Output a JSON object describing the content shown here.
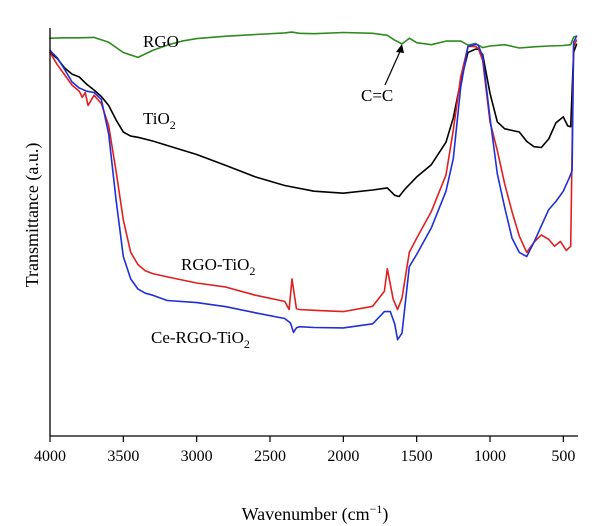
{
  "chart_data": {
    "type": "line",
    "title": "",
    "xlabel": "Wavenumber (cm",
    "xlabel_sup": "−1",
    "xlabel_end": ")",
    "ylabel": "Transmittance (a.u.)",
    "x_reversed": true,
    "xlim": [
      4000,
      400
    ],
    "ylim": [
      0,
      100
    ],
    "yticks_shown": false,
    "grid": false,
    "legend": "none",
    "x_ticks": [
      4000,
      3500,
      3000,
      2500,
      2000,
      1500,
      1000,
      500
    ],
    "x_tick_labels": [
      "4000",
      "3500",
      "3000",
      "2500",
      "2000",
      "1500",
      "1000",
      "500"
    ],
    "series": [
      {
        "name": "RGO",
        "color": "#2e8b1e",
        "x": [
          4000,
          3900,
          3800,
          3700,
          3600,
          3500,
          3400,
          3300,
          3200,
          3100,
          3000,
          2800,
          2600,
          2400,
          2350,
          2300,
          2200,
          2000,
          1800,
          1700,
          1650,
          1600,
          1550,
          1500,
          1400,
          1300,
          1200,
          1150,
          1100,
          1050,
          1000,
          900,
          800,
          700,
          600,
          500,
          450,
          430,
          410
        ],
        "y": [
          97.5,
          97.6,
          97.6,
          97.7,
          96.5,
          94,
          92.8,
          94.5,
          95.8,
          96.8,
          97.4,
          98.0,
          98.4,
          98.8,
          99.0,
          98.7,
          98.6,
          98.9,
          98.7,
          98.2,
          97.0,
          96.1,
          97.5,
          96.4,
          95.9,
          96.8,
          96.8,
          95.8,
          96.2,
          95.2,
          95.6,
          95.9,
          95.1,
          95.4,
          95.6,
          95.7,
          95.9,
          97.8,
          98.0
        ],
        "label": "RGO"
      },
      {
        "name": "TiO2",
        "color": "#000000",
        "x": [
          4000,
          3950,
          3900,
          3850,
          3800,
          3750,
          3700,
          3650,
          3600,
          3550,
          3500,
          3450,
          3400,
          3300,
          3200,
          3000,
          2800,
          2600,
          2400,
          2200,
          2000,
          1800,
          1700,
          1650,
          1620,
          1580,
          1500,
          1400,
          1300,
          1250,
          1200,
          1150,
          1100,
          1080,
          1050,
          1000,
          950,
          900,
          800,
          750,
          700,
          650,
          600,
          550,
          500,
          470,
          450,
          430,
          410
        ],
        "y": [
          94,
          92.5,
          90.2,
          88.7,
          88,
          86.2,
          84.8,
          83.2,
          81,
          77.5,
          74.5,
          73.5,
          73.2,
          72.3,
          71.2,
          69,
          66.3,
          63.5,
          61.4,
          60,
          59.5,
          60.3,
          60.8,
          59,
          58.7,
          60.5,
          63.5,
          66.5,
          72,
          78,
          87,
          94,
          94.8,
          94.8,
          93.5,
          84,
          77,
          75.3,
          74.5,
          72.2,
          70.9,
          70.7,
          72.8,
          76.8,
          78.2,
          76,
          75.8,
          94,
          96
        ],
        "label": "TiO2"
      },
      {
        "name": "RGO-TiO2",
        "color": "#e02020",
        "x": [
          4000,
          3950,
          3900,
          3850,
          3800,
          3780,
          3760,
          3740,
          3700,
          3650,
          3600,
          3550,
          3500,
          3450,
          3400,
          3350,
          3300,
          3200,
          3000,
          2800,
          2600,
          2400,
          2370,
          2350,
          2320,
          2300,
          2200,
          2000,
          1800,
          1720,
          1700,
          1660,
          1630,
          1600,
          1550,
          1500,
          1400,
          1300,
          1250,
          1200,
          1150,
          1100,
          1080,
          1050,
          1000,
          950,
          900,
          850,
          800,
          750,
          700,
          650,
          600,
          560,
          520,
          480,
          450,
          430,
          410
        ],
        "y": [
          94,
          91,
          88.5,
          86,
          84.5,
          83,
          84.2,
          81,
          83.5,
          81.5,
          76,
          65,
          53,
          45,
          42,
          40.5,
          39.8,
          39,
          37.5,
          36.5,
          34.5,
          33,
          31,
          38.5,
          31.2,
          31,
          30.8,
          30.5,
          31.8,
          35.5,
          41,
          33.5,
          31,
          33.8,
          45,
          48.5,
          55,
          64,
          75,
          88,
          95.5,
          95.5,
          95,
          92,
          77,
          70,
          61.8,
          55,
          49,
          45,
          47.5,
          49.3,
          48.2,
          46.5,
          47.7,
          45.5,
          46.5,
          95.5,
          97
        ],
        "label": "RGO-TiO2"
      },
      {
        "name": "Ce-RGO-TiO2",
        "color": "#1f2fd8",
        "x": [
          4000,
          3950,
          3900,
          3850,
          3800,
          3750,
          3700,
          3650,
          3600,
          3550,
          3500,
          3450,
          3400,
          3350,
          3300,
          3200,
          3000,
          2800,
          2600,
          2400,
          2360,
          2340,
          2320,
          2300,
          2200,
          2000,
          1800,
          1720,
          1680,
          1650,
          1630,
          1600,
          1550,
          1500,
          1400,
          1300,
          1250,
          1200,
          1150,
          1100,
          1080,
          1050,
          1000,
          950,
          900,
          850,
          800,
          750,
          700,
          650,
          600,
          550,
          500,
          460,
          440,
          430,
          410
        ],
        "y": [
          94.5,
          92.7,
          89.8,
          86.8,
          85.3,
          84.5,
          84.2,
          82.5,
          74,
          58,
          44,
          38.5,
          36,
          35,
          34.5,
          33.2,
          32.7,
          31.7,
          30.2,
          28.8,
          27.7,
          25.4,
          26.5,
          26.8,
          26.6,
          26.5,
          27.5,
          30.5,
          30.5,
          27.5,
          23.6,
          25.2,
          41.5,
          44.5,
          51,
          60,
          68,
          85.5,
          95.5,
          96,
          95.8,
          93,
          78,
          64.3,
          56,
          48.5,
          45,
          44,
          47.5,
          51.5,
          55.5,
          57.5,
          60,
          63.2,
          65,
          96.5,
          98
        ],
        "label": "Ce-RGO-TiO2"
      }
    ],
    "annotations": [
      {
        "text": "C=C",
        "arrow_to_x": 1600,
        "arrow_to_y": 96.1
      }
    ]
  },
  "labels": {
    "rgo": {
      "base": "RGO",
      "sub": ""
    },
    "tio2": {
      "base": "TiO",
      "sub": "2"
    },
    "rgo_tio2": {
      "base": "RGO-TiO",
      "sub": "2"
    },
    "ce_rgo_tio2": {
      "base": "Ce-RGO-TiO",
      "sub": "2"
    },
    "cc": "C=C"
  }
}
